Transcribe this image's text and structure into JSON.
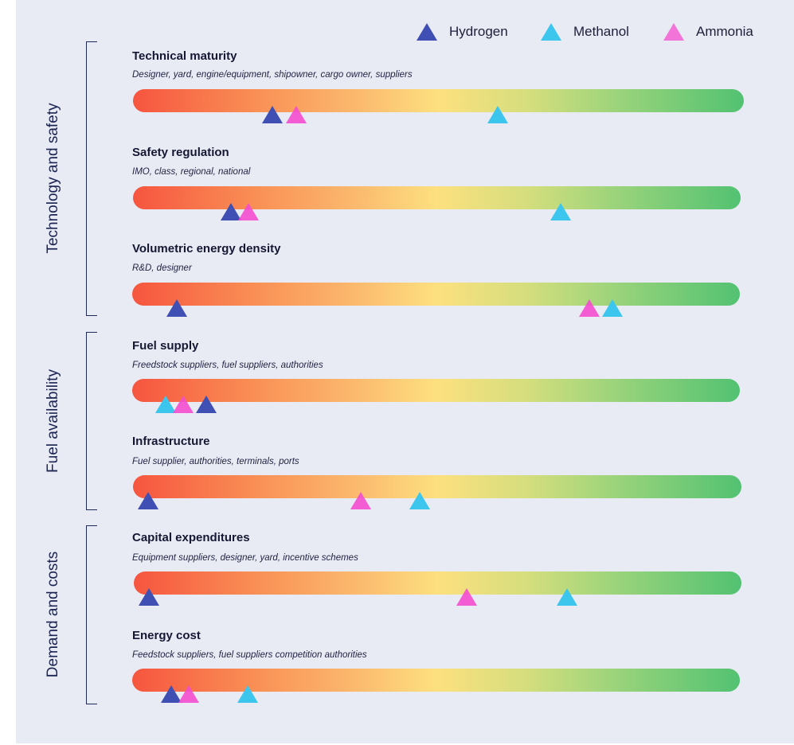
{
  "colors": {
    "hydrogen": "#3f4fb4",
    "methanol": "#3cc6ee",
    "ammonia": "#f44ccf",
    "background": "#e9ebf4"
  },
  "legend": [
    {
      "key": "hydrogen",
      "label": "Hydrogen"
    },
    {
      "key": "methanol",
      "label": "Methanol"
    },
    {
      "key": "ammonia",
      "label": "Ammonia"
    }
  ],
  "groups": [
    {
      "key": "technology",
      "label": "Technology and safety"
    },
    {
      "key": "fuel",
      "label": "Fuel availability"
    },
    {
      "key": "demand",
      "label": "Demand and costs"
    }
  ],
  "rows": [
    {
      "title": "Technical maturity",
      "subtitle": "Designer, yard, engine/equipment, shipowner, cargo owner, suppliers",
      "markers": {
        "hydrogen": 0.22,
        "ammonia": 0.26,
        "methanol": 0.6
      }
    },
    {
      "title": "Safety regulation",
      "subtitle": "IMO, class, regional, national",
      "markers": {
        "hydrogen": 0.15,
        "ammonia": 0.18,
        "methanol": 0.71
      }
    },
    {
      "title": "Volumetric energy density",
      "subtitle": "R&D, designer",
      "markers": {
        "hydrogen": 0.06,
        "ammonia": 0.76,
        "methanol": 0.8
      }
    },
    {
      "title": "Fuel supply",
      "subtitle": "Freedstock suppliers, fuel suppliers, authorities",
      "markers": {
        "methanol": 0.04,
        "ammonia": 0.07,
        "hydrogen": 0.11
      }
    },
    {
      "title": "Infrastructure",
      "subtitle": "Fuel supplier, authorities, terminals, ports",
      "markers": {
        "hydrogen": 0.01,
        "ammonia": 0.37,
        "methanol": 0.47
      }
    },
    {
      "title": "Capital expenditures",
      "subtitle": "Equipment suppliers, designer, yard, incentive schemes",
      "markers": {
        "hydrogen": 0.01,
        "ammonia": 0.55,
        "methanol": 0.72
      }
    },
    {
      "title": "Energy cost",
      "subtitle": "Feedstock suppliers, fuel suppliers competition authorities",
      "markers": {
        "hydrogen": 0.05,
        "ammonia": 0.08,
        "methanol": 0.18
      }
    }
  ]
}
